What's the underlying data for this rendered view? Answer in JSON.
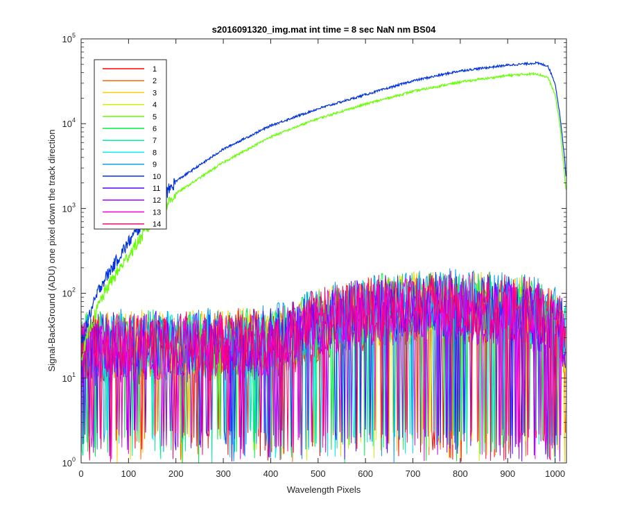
{
  "chart_data": {
    "type": "line",
    "title": "s2016091320_img.mat int time = 8 sec  NaN nm BS04",
    "xlabel": "Wavelength Pixels",
    "ylabel": "Signal-BackGround (ADU) one pixel down the track direction",
    "xlim": [
      0,
      1024
    ],
    "ylim": [
      1,
      100000
    ],
    "yscale": "log",
    "grid": false,
    "legend_placement": "top-left",
    "x_ticks": [
      0,
      100,
      200,
      300,
      400,
      500,
      600,
      700,
      800,
      900,
      1000
    ],
    "x_tick_labels": [
      "0",
      "100",
      "200",
      "300",
      "400",
      "500",
      "600",
      "700",
      "800",
      "900",
      "1000"
    ],
    "y_tick_labels": [
      {
        "base": "10",
        "exp": "0",
        "value": 1
      },
      {
        "base": "10",
        "exp": "1",
        "value": 10
      },
      {
        "base": "10",
        "exp": "2",
        "value": 100
      },
      {
        "base": "10",
        "exp": "3",
        "value": 1000
      },
      {
        "base": "10",
        "exp": "4",
        "value": 10000
      },
      {
        "base": "10",
        "exp": "5",
        "value": 100000
      }
    ],
    "series": [
      {
        "name": "1",
        "color": "#ff0000",
        "kind": "noise"
      },
      {
        "name": "2",
        "color": "#ff6600",
        "kind": "noise"
      },
      {
        "name": "3",
        "color": "#ffcc00",
        "kind": "noise"
      },
      {
        "name": "4",
        "color": "#ccee00",
        "kind": "noise"
      },
      {
        "name": "5",
        "color": "#66ff00",
        "kind": "signal",
        "x": [
          0,
          20,
          40,
          60,
          100,
          150,
          200,
          300,
          400,
          500,
          600,
          700,
          800,
          900,
          960,
          985,
          1000,
          1010,
          1020,
          1024
        ],
        "y": [
          18,
          40,
          80,
          130,
          280,
          700,
          1500,
          3500,
          7000,
          11500,
          17000,
          24000,
          31000,
          37000,
          39000,
          35000,
          22000,
          10000,
          2500,
          1400
        ]
      },
      {
        "name": "6",
        "color": "#00ee44",
        "kind": "noise"
      },
      {
        "name": "7",
        "color": "#00ee99",
        "kind": "noise"
      },
      {
        "name": "8",
        "color": "#00eeee",
        "kind": "noise"
      },
      {
        "name": "9",
        "color": "#0099ff",
        "kind": "noise"
      },
      {
        "name": "10",
        "color": "#0033dd",
        "kind": "signal",
        "x": [
          0,
          20,
          40,
          60,
          100,
          150,
          200,
          300,
          400,
          500,
          600,
          700,
          800,
          900,
          960,
          985,
          1000,
          1010,
          1020,
          1024
        ],
        "y": [
          25,
          60,
          120,
          180,
          400,
          950,
          2100,
          5000,
          9500,
          15000,
          22000,
          32000,
          42000,
          49000,
          52000,
          48000,
          30000,
          13000,
          4000,
          2000
        ]
      },
      {
        "name": "11",
        "color": "#5500ff",
        "kind": "noise"
      },
      {
        "name": "12",
        "color": "#aa00ff",
        "kind": "noise"
      },
      {
        "name": "13",
        "color": "#ff00dd",
        "kind": "noise"
      },
      {
        "name": "14",
        "color": "#ff0066",
        "kind": "noise"
      }
    ],
    "noise_envelope": {
      "x": [
        0,
        100,
        200,
        300,
        400,
        450,
        500,
        600,
        700,
        800,
        900,
        960,
        1000,
        1024
      ],
      "typical_y": [
        22,
        24,
        25,
        25,
        27,
        33,
        45,
        60,
        70,
        72,
        65,
        58,
        45,
        30
      ],
      "floor_y": 1
    }
  }
}
